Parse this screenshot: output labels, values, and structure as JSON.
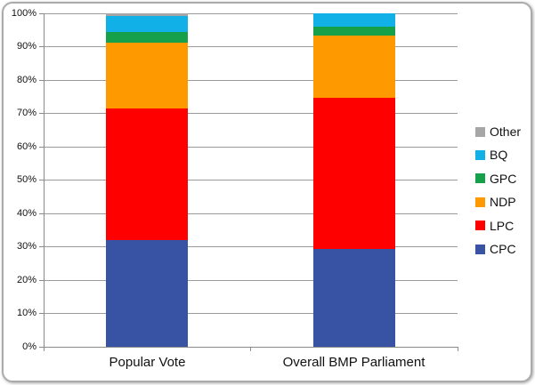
{
  "chart_data": {
    "type": "bar",
    "stacked": true,
    "percent_stacked": true,
    "unit": "%",
    "categories": [
      "Popular Vote",
      "Overall BMP Parliament"
    ],
    "series": [
      {
        "name": "CPC",
        "color": "#3852A4",
        "values": [
          31.9,
          29.4
        ]
      },
      {
        "name": "LPC",
        "color": "#FF0000",
        "values": [
          39.5,
          45.3
        ]
      },
      {
        "name": "NDP",
        "color": "#FF9900",
        "values": [
          19.7,
          18.7
        ]
      },
      {
        "name": "GPC",
        "color": "#16A04A",
        "values": [
          3.4,
          2.6
        ]
      },
      {
        "name": "BQ",
        "color": "#11B1E7",
        "values": [
          4.7,
          4.0
        ]
      },
      {
        "name": "Other",
        "color": "#A6A6A6",
        "values": [
          0.8,
          0.0
        ]
      }
    ],
    "y_axis": {
      "min": 0,
      "max": 100,
      "step": 10,
      "grid": true,
      "tick_labels": [
        "0%",
        "10%",
        "20%",
        "30%",
        "40%",
        "50%",
        "60%",
        "70%",
        "80%",
        "90%",
        "100%"
      ]
    },
    "legend": {
      "position": "right",
      "items_top_to_bottom": [
        "Other",
        "BQ",
        "GPC",
        "NDP",
        "LPC",
        "CPC"
      ]
    }
  },
  "colors": {
    "gridline": "#9b9b9b",
    "axis": "#8a8a8a",
    "frame_border": "#ababab",
    "background": "#ffffff",
    "text": "#111111"
  }
}
